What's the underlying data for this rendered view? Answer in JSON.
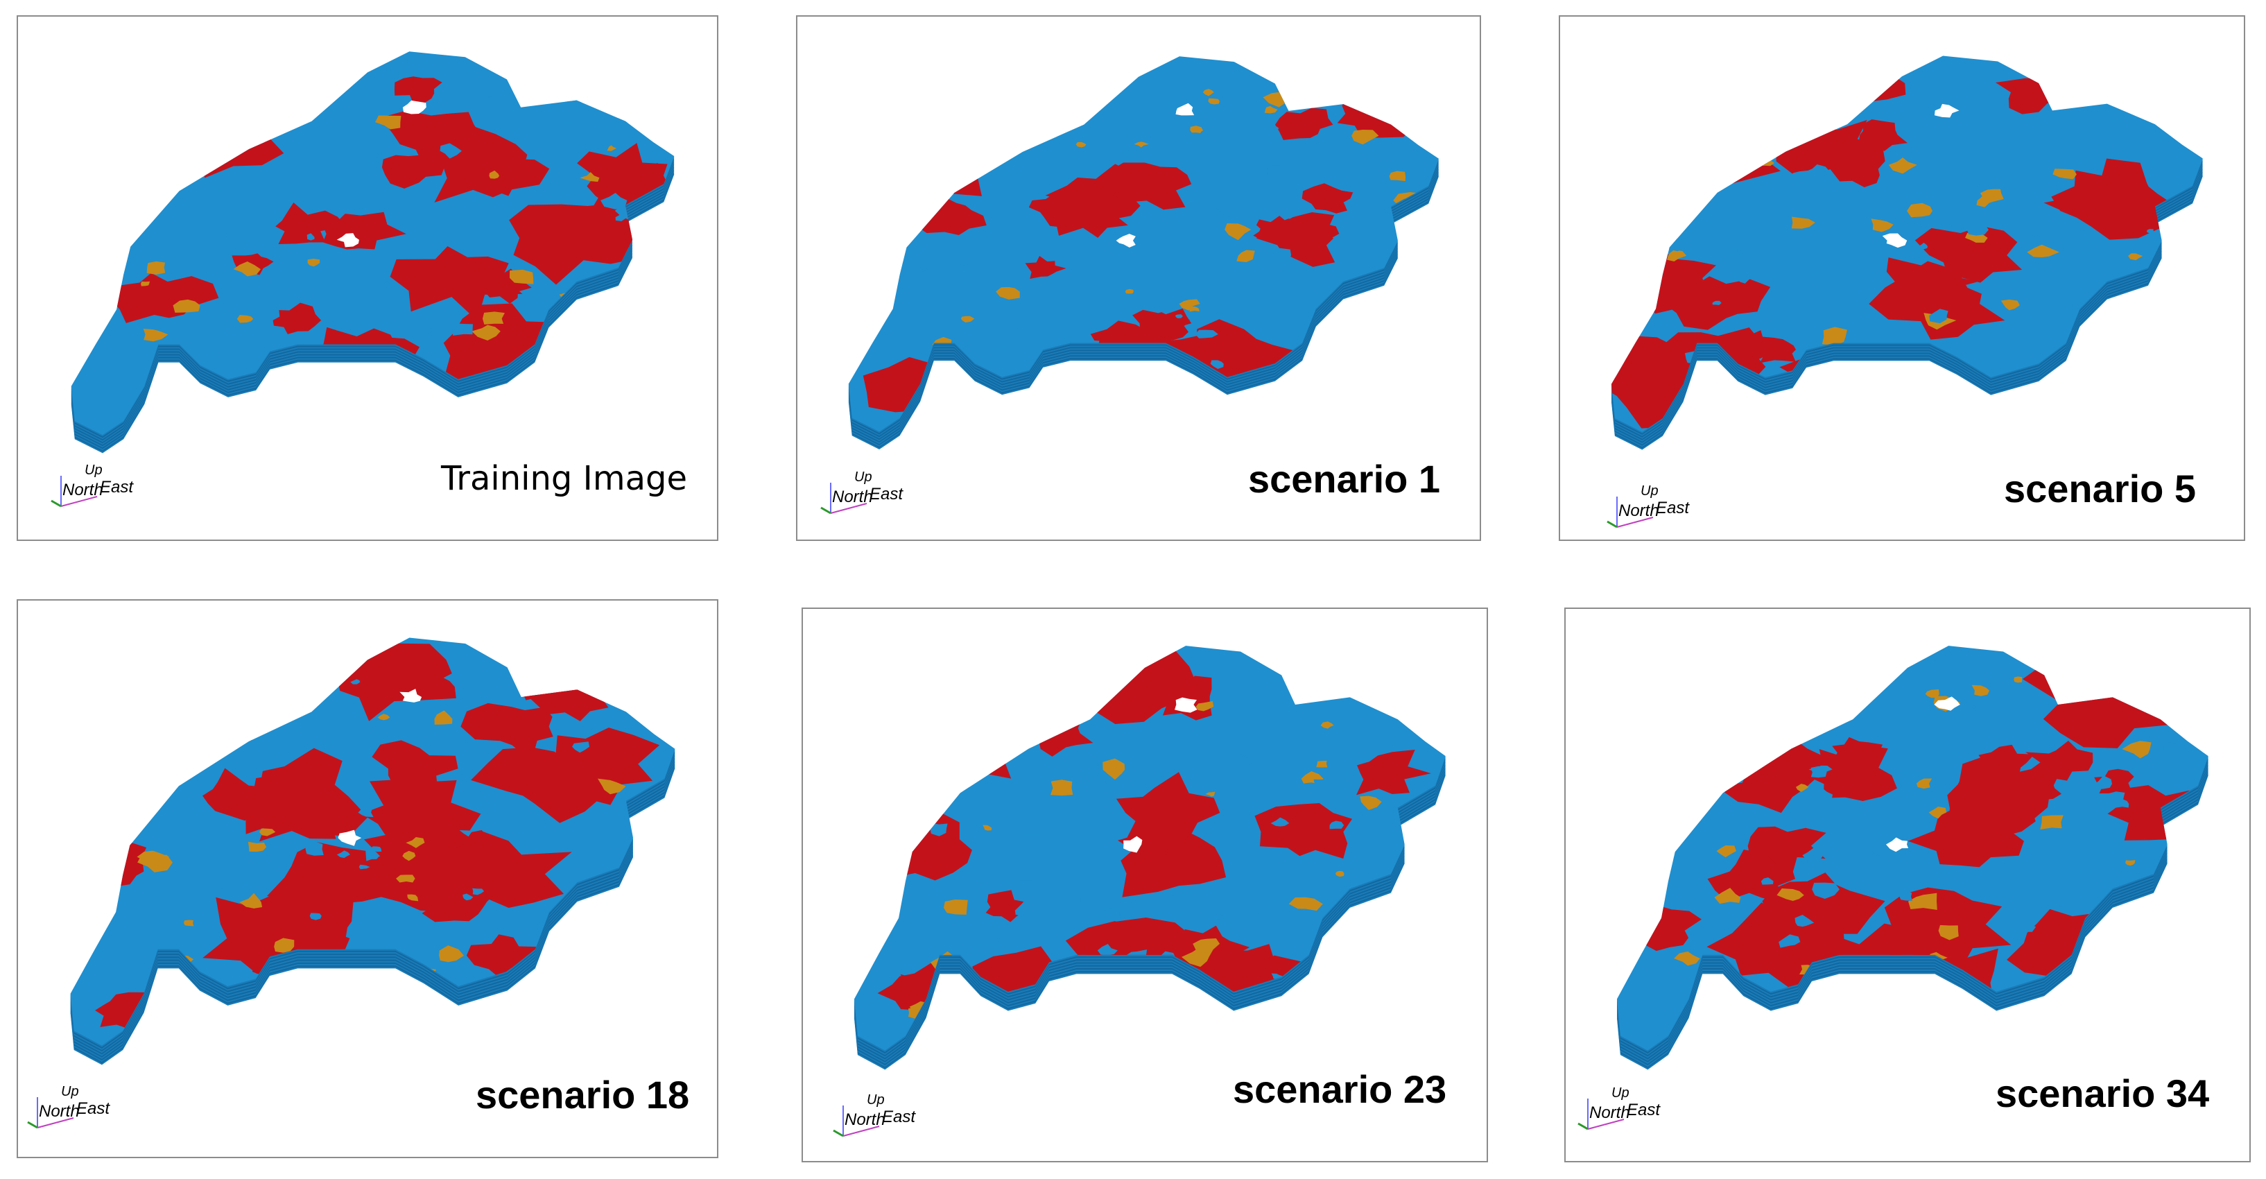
{
  "colors": {
    "shale": "#1f8fcf",
    "shale_dark": "#1268a0",
    "sand": "#c4121a",
    "sand_dark": "#8e0c12",
    "silt": "#c98a18",
    "background": "#ffffff",
    "border": "#8c8c8c"
  },
  "panels": [
    {
      "label": "Training Image",
      "axis": {
        "up": "Up",
        "north": "North",
        "east": "East"
      }
    },
    {
      "label": "scenario 1",
      "axis": {
        "up": "Up",
        "north": "North",
        "east": "East"
      }
    },
    {
      "label": "scenario 5",
      "axis": {
        "up": "Up",
        "north": "North",
        "east": "East"
      }
    },
    {
      "label": "scenario 18",
      "axis": {
        "up": "Up",
        "north": "North",
        "east": "East"
      }
    },
    {
      "label": "scenario 23",
      "axis": {
        "up": "Up",
        "north": "North",
        "east": "East"
      }
    },
    {
      "label": "scenario 34",
      "axis": {
        "up": "Up",
        "north": "North",
        "east": "East"
      }
    }
  ]
}
